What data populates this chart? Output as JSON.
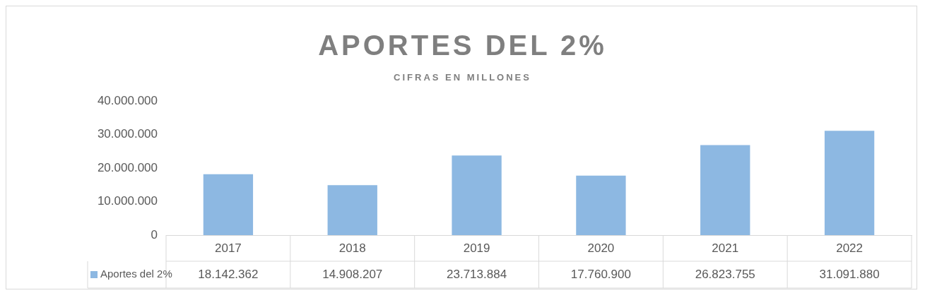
{
  "chart_data": {
    "type": "bar",
    "title": "APORTES DEL 2%",
    "subtitle": "CIFRAS EN MILLONES",
    "categories": [
      "2017",
      "2018",
      "2019",
      "2020",
      "2021",
      "2022"
    ],
    "series": [
      {
        "name": "Aportes del 2%",
        "color": "#8db8e2",
        "values": [
          18142362,
          14908207,
          23713884,
          17760900,
          26823755,
          31091880
        ],
        "value_labels": [
          "18.142.362",
          "14.908.207",
          "23.713.884",
          "17.760.900",
          "26.823.755",
          "31.091.880"
        ]
      }
    ],
    "ylim": [
      0,
      40000000
    ],
    "yticks": [
      {
        "value": 0,
        "label": "0"
      },
      {
        "value": 10000000,
        "label": "10.000.000"
      },
      {
        "value": 20000000,
        "label": "20.000.000"
      },
      {
        "value": 30000000,
        "label": "30.000.000"
      },
      {
        "value": 40000000,
        "label": "40.000.000"
      }
    ],
    "grid": false,
    "legend": "bottom"
  }
}
